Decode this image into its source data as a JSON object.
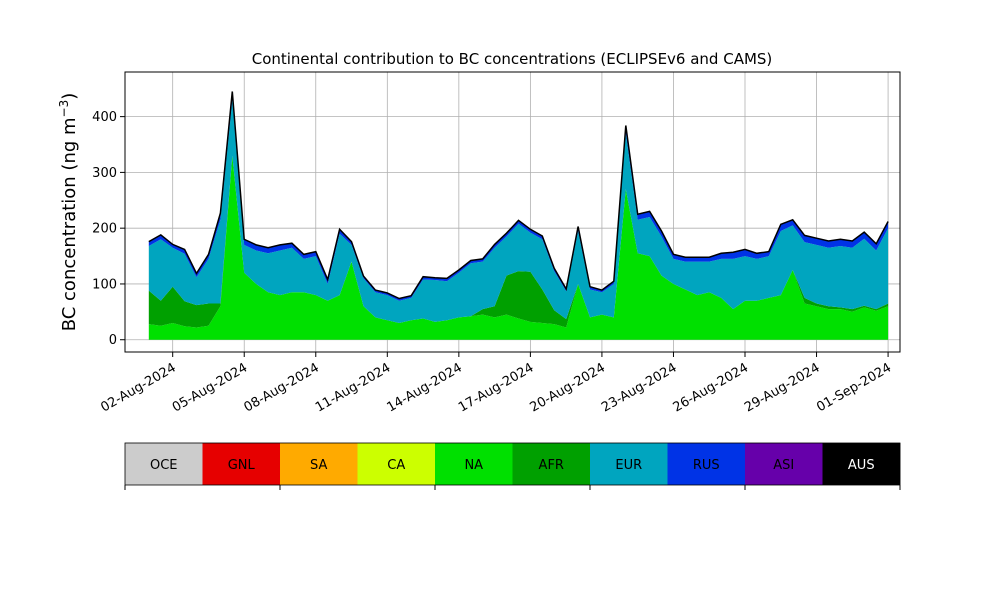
{
  "chart_data": {
    "type": "area",
    "stacked": true,
    "title": "Continental contribution to BC concentrations (ECLIPSEv6 and CAMS)",
    "ylabel": "BC concentration (ng m",
    "ylabel_superscript": "−3",
    "ylabel_suffix": ")",
    "xlabel": "",
    "x": [
      "2024-08-01T00",
      "2024-08-01T12",
      "2024-08-02T00",
      "2024-08-02T12",
      "2024-08-03T00",
      "2024-08-03T12",
      "2024-08-04T00",
      "2024-08-04T12",
      "2024-08-05T00",
      "2024-08-05T12",
      "2024-08-06T00",
      "2024-08-06T12",
      "2024-08-07T00",
      "2024-08-07T12",
      "2024-08-08T00",
      "2024-08-08T12",
      "2024-08-09T00",
      "2024-08-09T12",
      "2024-08-10T00",
      "2024-08-10T12",
      "2024-08-11T00",
      "2024-08-11T12",
      "2024-08-12T00",
      "2024-08-12T12",
      "2024-08-13T00",
      "2024-08-13T12",
      "2024-08-14T00",
      "2024-08-14T12",
      "2024-08-15T00",
      "2024-08-15T12",
      "2024-08-16T00",
      "2024-08-16T12",
      "2024-08-17T00",
      "2024-08-17T12",
      "2024-08-18T00",
      "2024-08-18T12",
      "2024-08-19T00",
      "2024-08-19T12",
      "2024-08-20T00",
      "2024-08-20T12",
      "2024-08-21T00",
      "2024-08-21T12",
      "2024-08-22T00",
      "2024-08-22T12",
      "2024-08-23T00",
      "2024-08-23T12",
      "2024-08-24T00",
      "2024-08-24T12",
      "2024-08-25T00",
      "2024-08-25T12",
      "2024-08-26T00",
      "2024-08-26T12",
      "2024-08-27T00",
      "2024-08-27T12",
      "2024-08-28T00",
      "2024-08-28T12",
      "2024-08-29T00",
      "2024-08-29T12",
      "2024-08-30T00",
      "2024-08-30T12",
      "2024-08-31T00",
      "2024-08-31T12",
      "2024-09-01T00"
    ],
    "series": [
      {
        "name": "OCE",
        "color": "#cccccc",
        "values": [
          0,
          0,
          0,
          0,
          0,
          0,
          0,
          0,
          0,
          0,
          0,
          0,
          0,
          0,
          0,
          0,
          0,
          0,
          0,
          0,
          0,
          0,
          0,
          0,
          0,
          0,
          0,
          0,
          0,
          0,
          0,
          0,
          0,
          0,
          0,
          0,
          0,
          0,
          0,
          0,
          0,
          0,
          0,
          0,
          0,
          0,
          0,
          0,
          0,
          0,
          0,
          0,
          0,
          0,
          0,
          0,
          0,
          0,
          0,
          0,
          0,
          0,
          0
        ]
      },
      {
        "name": "GNL",
        "color": "#e60000",
        "values": [
          0,
          0,
          0,
          0,
          0,
          0,
          0,
          0,
          0,
          0,
          0,
          0,
          0,
          0,
          0,
          0,
          0,
          0,
          0,
          0,
          0,
          0,
          0,
          0,
          0,
          0,
          0,
          0,
          0,
          0,
          0,
          0,
          0,
          0,
          0,
          0,
          0,
          0,
          0,
          0,
          0,
          0,
          0,
          0,
          0,
          0,
          0,
          0,
          0,
          0,
          0,
          0,
          0,
          0,
          0,
          0,
          0,
          0,
          0,
          0,
          0,
          0,
          0
        ]
      },
      {
        "name": "SA",
        "color": "#ffaa00",
        "values": [
          0,
          0,
          0,
          0,
          0,
          0,
          0,
          0,
          0,
          0,
          0,
          0,
          0,
          0,
          0,
          0,
          0,
          0,
          0,
          0,
          0,
          0,
          0,
          0,
          0,
          0,
          0,
          0,
          0,
          0,
          0,
          0,
          0,
          0,
          0,
          0,
          0,
          0,
          0,
          0,
          0,
          0,
          0,
          0,
          0,
          0,
          0,
          0,
          0,
          0,
          0,
          0,
          0,
          0,
          0,
          0,
          0,
          0,
          0,
          0,
          0,
          0,
          0
        ]
      },
      {
        "name": "CA",
        "color": "#ccff00",
        "values": [
          0,
          0,
          0,
          0,
          0,
          0,
          0,
          0,
          0,
          0,
          0,
          0,
          0,
          0,
          0,
          0,
          0,
          0,
          0,
          0,
          0,
          0,
          0,
          0,
          0,
          0,
          0,
          0,
          0,
          0,
          0,
          0,
          0,
          0,
          0,
          0,
          0,
          0,
          0,
          0,
          0,
          0,
          0,
          0,
          0,
          0,
          0,
          0,
          0,
          0,
          0,
          0,
          0,
          0,
          0,
          0,
          0,
          0,
          0,
          0,
          0,
          0,
          0
        ]
      },
      {
        "name": "NA",
        "color": "#00e000",
        "values": [
          28,
          25,
          30,
          24,
          22,
          25,
          60,
          330,
          120,
          100,
          85,
          80,
          85,
          85,
          80,
          70,
          80,
          140,
          60,
          40,
          35,
          30,
          35,
          38,
          32,
          35,
          40,
          42,
          45,
          40,
          45,
          38,
          32,
          30,
          28,
          22,
          100,
          40,
          45,
          40,
          270,
          155,
          150,
          115,
          100,
          90,
          80,
          85,
          75,
          55,
          70,
          70,
          75,
          80,
          125,
          65,
          60,
          55,
          55,
          50,
          58,
          52,
          60
        ]
      },
      {
        "name": "AFR",
        "color": "#00a000",
        "values": [
          60,
          45,
          65,
          45,
          40,
          40,
          5,
          0,
          0,
          0,
          0,
          0,
          0,
          0,
          0,
          0,
          0,
          0,
          0,
          0,
          0,
          0,
          0,
          0,
          0,
          0,
          0,
          0,
          10,
          20,
          70,
          85,
          90,
          60,
          25,
          15,
          0,
          0,
          0,
          0,
          0,
          0,
          0,
          0,
          0,
          0,
          0,
          0,
          0,
          0,
          0,
          0,
          0,
          0,
          0,
          10,
          5,
          5,
          3,
          5,
          3,
          3,
          5
        ]
      },
      {
        "name": "EUR",
        "color": "#00a5bf",
        "values": [
          80,
          110,
          70,
          85,
          50,
          80,
          150,
          100,
          50,
          60,
          70,
          80,
          80,
          60,
          70,
          30,
          110,
          30,
          50,
          45,
          45,
          40,
          40,
          70,
          75,
          70,
          80,
          95,
          85,
          105,
          70,
          85,
          70,
          90,
          70,
          50,
          95,
          50,
          40,
          60,
          100,
          60,
          70,
          70,
          45,
          50,
          60,
          55,
          70,
          90,
          80,
          75,
          75,
          115,
          80,
          100,
          105,
          105,
          110,
          110,
          120,
          105,
          135
        ]
      },
      {
        "name": "RUS",
        "color": "#0033e6",
        "values": [
          8,
          8,
          6,
          8,
          7,
          8,
          12,
          15,
          10,
          10,
          10,
          10,
          8,
          8,
          8,
          8,
          8,
          6,
          4,
          4,
          4,
          4,
          4,
          5,
          4,
          5,
          5,
          5,
          5,
          6,
          6,
          6,
          6,
          6,
          5,
          4,
          8,
          5,
          4,
          5,
          14,
          10,
          10,
          10,
          8,
          8,
          8,
          8,
          10,
          12,
          12,
          10,
          8,
          12,
          10,
          12,
          12,
          12,
          12,
          12,
          12,
          12,
          12
        ]
      },
      {
        "name": "ASI",
        "color": "#6600aa",
        "values": [
          0,
          0,
          0,
          0,
          0,
          0,
          0,
          0,
          0,
          0,
          0,
          0,
          0,
          0,
          0,
          0,
          0,
          0,
          0,
          0,
          0,
          0,
          0,
          0,
          0,
          0,
          0,
          0,
          0,
          0,
          0,
          0,
          0,
          0,
          0,
          0,
          0,
          0,
          0,
          0,
          0,
          0,
          0,
          0,
          0,
          0,
          0,
          0,
          0,
          0,
          0,
          0,
          0,
          0,
          0,
          0,
          0,
          0,
          0,
          0,
          0,
          0,
          0
        ]
      },
      {
        "name": "AUS",
        "color": "#000000",
        "values": [
          0,
          0,
          0,
          0,
          0,
          0,
          0,
          0,
          0,
          0,
          0,
          0,
          0,
          0,
          0,
          0,
          0,
          0,
          0,
          0,
          0,
          0,
          0,
          0,
          0,
          0,
          0,
          0,
          0,
          0,
          0,
          0,
          0,
          0,
          0,
          0,
          0,
          0,
          0,
          0,
          0,
          0,
          0,
          0,
          0,
          0,
          0,
          0,
          0,
          0,
          0,
          0,
          0,
          0,
          0,
          0,
          0,
          0,
          0,
          0,
          0,
          0,
          0
        ]
      }
    ],
    "ylim": [
      -22,
      480
    ],
    "yticks": [
      0,
      100,
      200,
      300,
      400
    ],
    "xlim": [
      "2024-07-31T00",
      "2024-09-01T12"
    ],
    "xticks": [
      {
        "date": "2024-08-02T00",
        "label": "02-Aug-2024"
      },
      {
        "date": "2024-08-05T00",
        "label": "05-Aug-2024"
      },
      {
        "date": "2024-08-08T00",
        "label": "08-Aug-2024"
      },
      {
        "date": "2024-08-11T00",
        "label": "11-Aug-2024"
      },
      {
        "date": "2024-08-14T00",
        "label": "14-Aug-2024"
      },
      {
        "date": "2024-08-17T00",
        "label": "17-Aug-2024"
      },
      {
        "date": "2024-08-20T00",
        "label": "20-Aug-2024"
      },
      {
        "date": "2024-08-23T00",
        "label": "23-Aug-2024"
      },
      {
        "date": "2024-08-26T00",
        "label": "26-Aug-2024"
      },
      {
        "date": "2024-08-29T00",
        "label": "29-Aug-2024"
      },
      {
        "date": "2024-09-01T00",
        "label": "01-Sep-2024"
      }
    ],
    "grid": true,
    "legend_labels": [
      "OCE",
      "GNL",
      "SA",
      "CA",
      "NA",
      "AFR",
      "EUR",
      "RUS",
      "ASI",
      "AUS"
    ],
    "legend_text_colors": [
      "#000000",
      "#000000",
      "#000000",
      "#000000",
      "#000000",
      "#000000",
      "#000000",
      "#000000",
      "#000000",
      "#ffffff"
    ]
  }
}
